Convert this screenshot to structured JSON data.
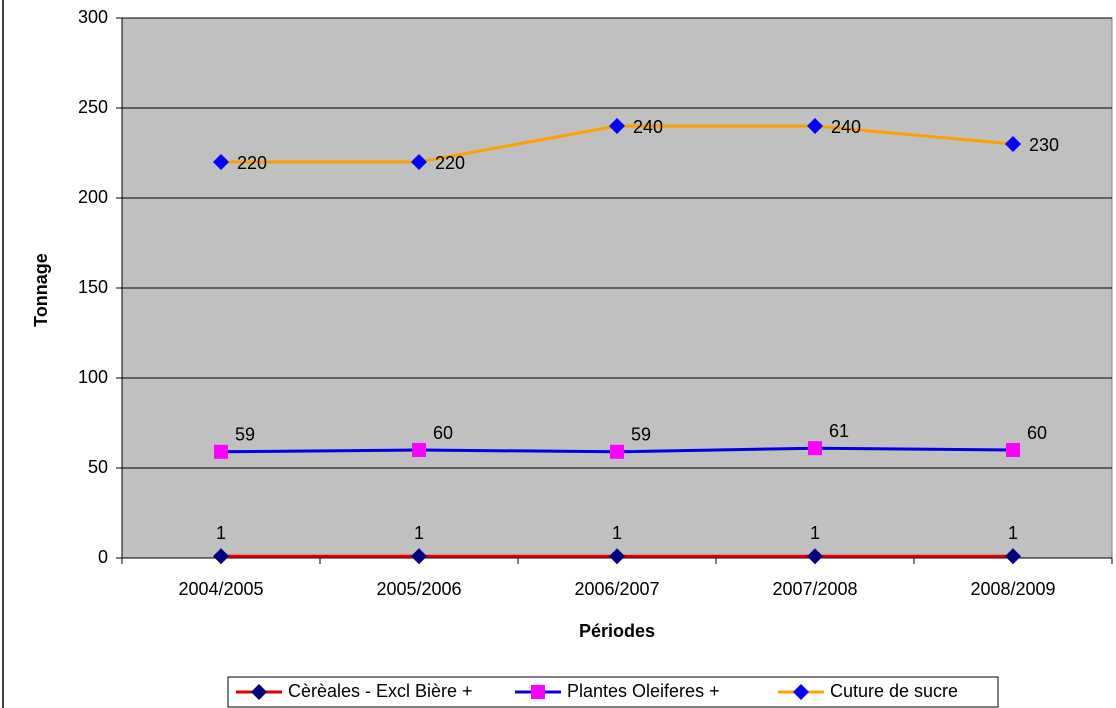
{
  "chart_data": {
    "type": "line",
    "x_label": "Périodes",
    "y_label": "Tonnage",
    "categories": [
      "2004/2005",
      "2005/2006",
      "2006/2007",
      "2007/2008",
      "2008/2009"
    ],
    "series": [
      {
        "name": "Cèrèales - Excl Bière +",
        "color": "#e00000",
        "marker_color": "#000080",
        "marker": "diamond",
        "values": [
          1,
          1,
          1,
          1,
          1
        ]
      },
      {
        "name": "Plantes Oleiferes +",
        "color": "#0000e0",
        "marker_color": "#ff00ff",
        "marker": "square",
        "values": [
          59,
          60,
          59,
          61,
          60
        ]
      },
      {
        "name": "Cuture de sucre",
        "color": "#ffa000",
        "marker_color": "#0000ff",
        "marker": "diamond",
        "values": [
          220,
          220,
          240,
          240,
          230
        ]
      }
    ],
    "ylim": [
      0,
      300
    ],
    "yticks": [
      0,
      50,
      100,
      150,
      200,
      250,
      300
    ],
    "grid": true,
    "plot_background": "#c0c0c0",
    "legend": "bottom"
  }
}
